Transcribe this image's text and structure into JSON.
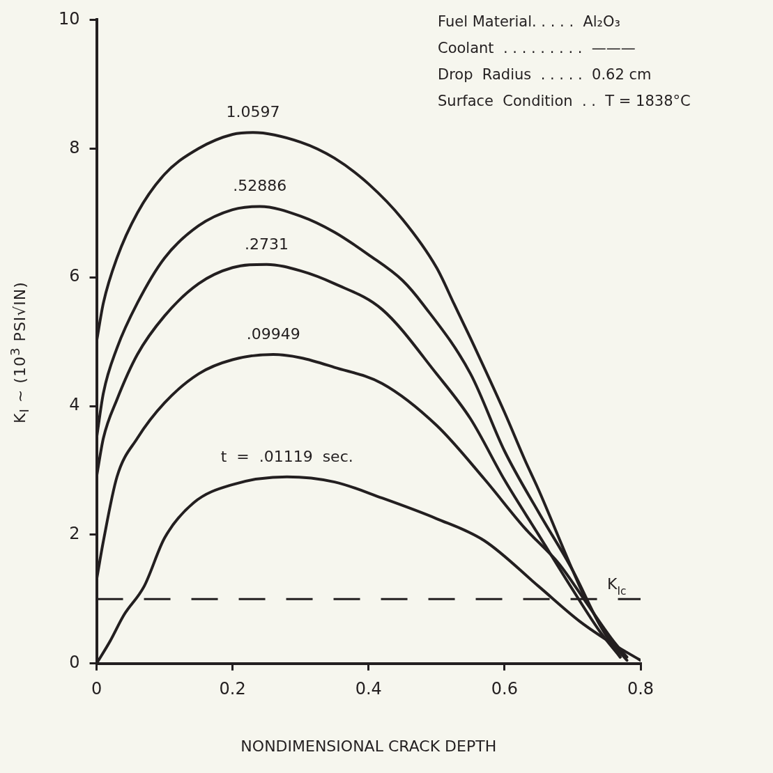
{
  "chart_data": {
    "type": "line",
    "xlabel": "NONDIMENSIONAL CRACK DEPTH",
    "ylabel": "K$_{I}$  ~  (10$^{3}$ PSI√IN)",
    "xlim": [
      0,
      0.8
    ],
    "xticks": [
      0,
      0.2,
      0.4,
      0.6,
      0.8
    ],
    "ylim": [
      0,
      10
    ],
    "yticks": [
      0,
      2,
      4,
      6,
      8,
      10
    ],
    "marker": "none",
    "line_style": "solid",
    "legend": false,
    "series": [
      {
        "name": "1.0597",
        "color": "#231f20",
        "x": [
          0,
          0.01,
          0.03,
          0.06,
          0.1,
          0.15,
          0.2,
          0.23,
          0.3,
          0.35,
          0.4,
          0.45,
          0.5,
          0.526,
          0.55,
          0.6,
          0.63,
          0.65,
          0.7,
          0.718,
          0.76,
          0.78
        ],
        "values": [
          5.0,
          5.6,
          6.3,
          7.0,
          7.6,
          8.0,
          8.22,
          8.25,
          8.1,
          7.85,
          7.45,
          6.9,
          6.15,
          5.58,
          5.05,
          3.9,
          3.16,
          2.7,
          1.45,
          1.03,
          0.3,
          0.05
        ]
      },
      {
        "name": ".52886",
        "color": "#231f20",
        "x": [
          0,
          0.01,
          0.03,
          0.06,
          0.1,
          0.15,
          0.2,
          0.24,
          0.3,
          0.35,
          0.4,
          0.45,
          0.48,
          0.55,
          0.6,
          0.65,
          0.7,
          0.74,
          0.77
        ],
        "values": [
          3.5,
          4.2,
          4.9,
          5.6,
          6.3,
          6.8,
          7.05,
          7.1,
          6.95,
          6.7,
          6.35,
          5.95,
          5.58,
          4.5,
          3.3,
          2.35,
          1.45,
          0.6,
          0.1
        ]
      },
      {
        "name": ".2731",
        "color": "#231f20",
        "x": [
          0,
          0.01,
          0.03,
          0.06,
          0.1,
          0.15,
          0.2,
          0.25,
          0.3,
          0.35,
          0.42,
          0.5,
          0.55,
          0.6,
          0.65,
          0.7,
          0.74,
          0.77
        ],
        "values": [
          2.9,
          3.5,
          4.1,
          4.8,
          5.4,
          5.9,
          6.15,
          6.2,
          6.1,
          5.9,
          5.5,
          4.5,
          3.8,
          2.85,
          2.0,
          1.15,
          0.5,
          0.1
        ]
      },
      {
        "name": ".09949",
        "color": "#231f20",
        "x": [
          0,
          0.01,
          0.03,
          0.06,
          0.1,
          0.15,
          0.2,
          0.26,
          0.3,
          0.35,
          0.42,
          0.5,
          0.57,
          0.63,
          0.68,
          0.72,
          0.76,
          0.78
        ],
        "values": [
          1.3,
          1.9,
          2.9,
          3.5,
          4.05,
          4.5,
          4.72,
          4.8,
          4.75,
          4.6,
          4.35,
          3.7,
          2.87,
          2.1,
          1.55,
          0.95,
          0.35,
          0.1
        ]
      },
      {
        "name": "t  =  .01119  sec.",
        "color": "#231f20",
        "x": [
          0,
          0.02,
          0.04,
          0.07,
          0.1,
          0.143,
          0.2,
          0.28,
          0.35,
          0.42,
          0.5,
          0.57,
          0.65,
          0.71,
          0.76,
          0.8
        ],
        "values": [
          0,
          0.35,
          0.75,
          1.2,
          1.95,
          2.5,
          2.78,
          2.9,
          2.82,
          2.57,
          2.25,
          1.91,
          1.2,
          0.66,
          0.3,
          0.05
        ]
      }
    ],
    "ref_lines": [
      {
        "axis": "y",
        "value": 1,
        "label": "K$_{Ic}$",
        "color": "#231f20",
        "line_style": "dashed"
      }
    ],
    "annotations": [
      "Fuel Material. . . . .  Al₂O₃",
      "Coolant  . . . . . . . . .  ———",
      "Drop  Radius  . . . . .  0.62 cm",
      "Surface  Condition  . .  T = 1838°C"
    ]
  }
}
